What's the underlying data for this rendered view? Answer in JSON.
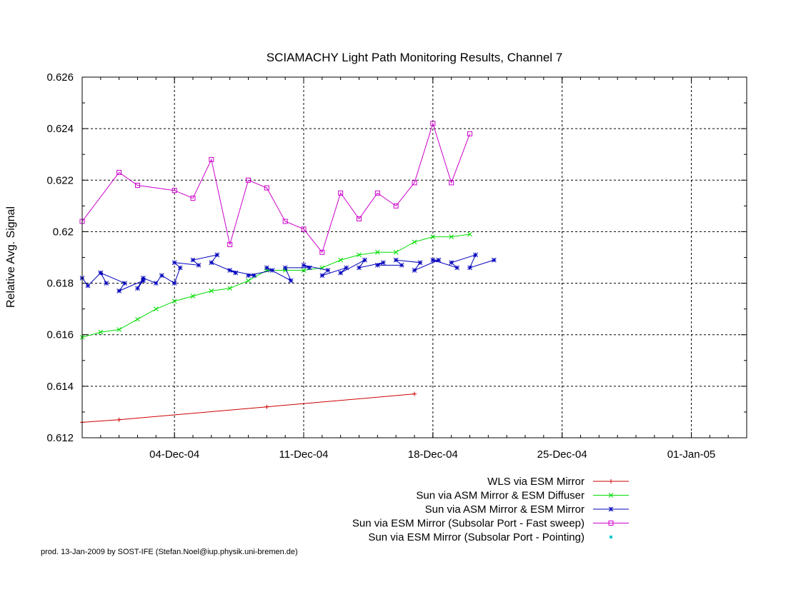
{
  "chart_data": {
    "type": "line",
    "title": "SCIAMACHY Light Path Monitoring Results, Channel 7",
    "xlabel": "",
    "ylabel": "Relative Avg. Signal",
    "xlim": [
      "2004-11-29",
      "2005-01-04"
    ],
    "ylim": [
      0.612,
      0.626
    ],
    "x_ticks": [
      {
        "date": "2004-12-04",
        "label": "04-Dec-04"
      },
      {
        "date": "2004-12-11",
        "label": "11-Dec-04"
      },
      {
        "date": "2004-12-18",
        "label": "18-Dec-04"
      },
      {
        "date": "2004-12-25",
        "label": "25-Dec-04"
      },
      {
        "date": "2005-01-01",
        "label": "01-Jan-05"
      }
    ],
    "y_ticks": [
      {
        "value": 0.612,
        "label": "0.612"
      },
      {
        "value": 0.614,
        "label": "0.614"
      },
      {
        "value": 0.616,
        "label": "0.616"
      },
      {
        "value": 0.618,
        "label": "0.618"
      },
      {
        "value": 0.62,
        "label": "0.62"
      },
      {
        "value": 0.622,
        "label": "0.622"
      },
      {
        "value": 0.624,
        "label": "0.624"
      },
      {
        "value": 0.626,
        "label": "0.626"
      }
    ],
    "grid": true,
    "legend_position": "bottom-right",
    "series": [
      {
        "name": "WLS via ESM Mirror",
        "color": "#cc0000",
        "marker": "plus",
        "x": [
          "2004-11-29",
          "2004-12-01",
          "2004-12-09",
          "2004-12-17"
        ],
        "y": [
          0.6126,
          0.6127,
          0.6132,
          0.6137
        ]
      },
      {
        "name": "Sun via ASM Mirror & ESM Diffuser",
        "color": "#00dd00",
        "marker": "cross",
        "x": [
          "2004-11-29",
          "2004-11-30",
          "2004-12-01",
          "2004-12-02",
          "2004-12-03",
          "2004-12-04",
          "2004-12-05",
          "2004-12-06",
          "2004-12-07",
          "2004-12-08",
          "2004-12-09",
          "2004-12-10",
          "2004-12-11",
          "2004-12-12",
          "2004-12-13",
          "2004-12-14",
          "2004-12-15",
          "2004-12-16",
          "2004-12-17",
          "2004-12-18",
          "2004-12-19",
          "2004-12-20"
        ],
        "y": [
          0.6159,
          0.6161,
          0.6162,
          0.6166,
          0.617,
          0.6173,
          0.6175,
          0.6177,
          0.6178,
          0.6181,
          0.6185,
          0.6185,
          0.6185,
          0.6186,
          0.6189,
          0.6191,
          0.6192,
          0.6192,
          0.6196,
          0.6198,
          0.6198,
          0.6199
        ]
      },
      {
        "name": "Sun via ASM Mirror & ESM Mirror",
        "color": "#0000bb",
        "marker": "star",
        "x": [
          "2004-11-29",
          "2004-11-29",
          "2004-11-30",
          "2004-11-30",
          "2004-11-30",
          "2004-12-01",
          "2004-12-01",
          "2004-12-02",
          "2004-12-02",
          "2004-12-02",
          "2004-12-03",
          "2004-12-03",
          "2004-12-04",
          "2004-12-04",
          "2004-12-04",
          "2004-12-05",
          "2004-12-05",
          "2004-12-06",
          "2004-12-06",
          "2004-12-07",
          "2004-12-07",
          "2004-12-08",
          "2004-12-08",
          "2004-12-09",
          "2004-12-09",
          "2004-12-10",
          "2004-12-10",
          "2004-12-11",
          "2004-12-11",
          "2004-12-12",
          "2004-12-12",
          "2004-12-13",
          "2004-12-13",
          "2004-12-14",
          "2004-12-14",
          "2004-12-15",
          "2004-12-15",
          "2004-12-16",
          "2004-12-16",
          "2004-12-17",
          "2004-12-17",
          "2004-12-18",
          "2004-12-18",
          "2004-12-19",
          "2004-12-19",
          "2004-12-20",
          "2004-12-20",
          "2004-12-21"
        ],
        "y": [
          0.6182,
          0.6179,
          0.6184,
          0.618,
          0.6184,
          0.618,
          0.6177,
          0.6181,
          0.6178,
          0.6182,
          0.618,
          0.6183,
          0.618,
          0.6186,
          0.6188,
          0.6187,
          0.6189,
          0.6191,
          0.6188,
          0.6184,
          0.6185,
          0.6183,
          0.6183,
          0.6185,
          0.6186,
          0.6181,
          0.6186,
          0.6186,
          0.6187,
          0.6185,
          0.6183,
          0.6186,
          0.6184,
          0.6189,
          0.6186,
          0.6188,
          0.6187,
          0.6187,
          0.6189,
          0.6188,
          0.6185,
          0.6189,
          0.6189,
          0.6186,
          0.6188,
          0.6191,
          0.6186,
          0.6189
        ]
      },
      {
        "name": "Sun via ESM Mirror (Subsolar Port - Fast sweep)",
        "color": "#cc00cc",
        "marker": "square",
        "x": [
          "2004-11-29",
          "2004-12-01",
          "2004-12-02",
          "2004-12-04",
          "2004-12-05",
          "2004-12-06",
          "2004-12-07",
          "2004-12-08",
          "2004-12-09",
          "2004-12-10",
          "2004-12-11",
          "2004-12-12",
          "2004-12-13",
          "2004-12-14",
          "2004-12-15",
          "2004-12-16",
          "2004-12-17",
          "2004-12-18",
          "2004-12-19",
          "2004-12-20"
        ],
        "y": [
          0.6204,
          0.6223,
          0.6218,
          0.6216,
          0.6213,
          0.6228,
          0.6195,
          0.622,
          0.6217,
          0.6204,
          0.6201,
          0.6192,
          0.6215,
          0.6205,
          0.6215,
          0.621,
          0.6219,
          0.6242,
          0.6219,
          0.6238
        ]
      },
      {
        "name": "Sun via ESM Mirror (Subsolar Port - Pointing)",
        "color": "#00cccc",
        "marker": "dot",
        "x": [],
        "y": []
      }
    ],
    "footer": "prod. 13-Jan-2009 by SOST-IFE (Stefan.Noel@iup.physik.uni-bremen.de)"
  }
}
